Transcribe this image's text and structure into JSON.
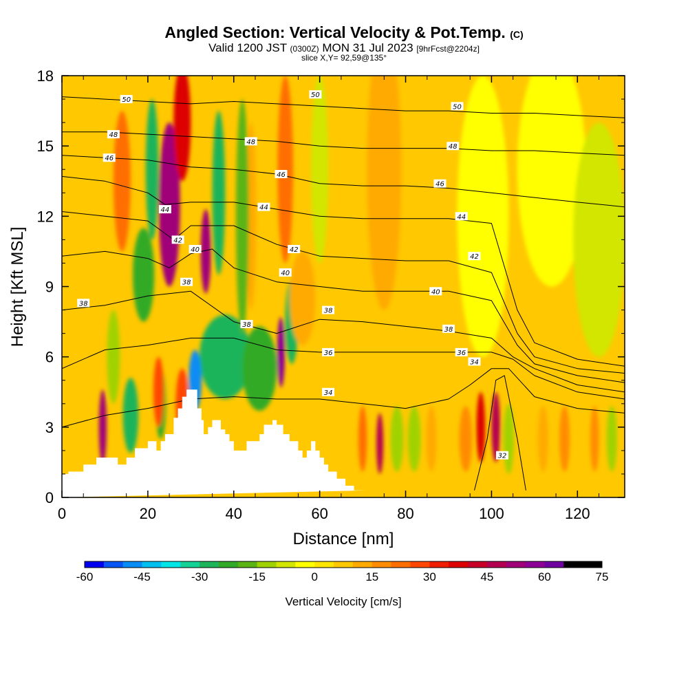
{
  "header": {
    "title": "Angled Section: Vertical Velocity & Pot.Temp.",
    "copyright": "(C)",
    "valid_prefix": "Valid 1200 JST",
    "valid_utc": "(0300Z)",
    "valid_date": "MON 31 Jul 2023",
    "forecast": "[9hrFcst@2204z]",
    "slice": "slice X,Y= 92,59@135°"
  },
  "colors": {
    "velocity_scale": [
      "#0000f0",
      "#0a55f5",
      "#0a8cf5",
      "#00c0f0",
      "#00e6e6",
      "#14d296",
      "#1eb45a",
      "#32aa28",
      "#5ab414",
      "#a0d200",
      "#d2e600",
      "#ffff00",
      "#ffe600",
      "#ffc800",
      "#ffaa00",
      "#ff8c00",
      "#ff6e00",
      "#ff4600",
      "#f01e00",
      "#dc0000",
      "#c80028",
      "#b40050",
      "#a00078",
      "#8c0096",
      "#6e00a0"
    ],
    "contour_line": "#000000",
    "terrain": "#ffffff"
  },
  "chart_data": {
    "type": "heatmap",
    "title": "Angled Section: Vertical Velocity & Pot.Temp.",
    "xlabel": "Distance [nm]",
    "ylabel": "Height [Kft MSL]",
    "xlim": [
      0,
      131
    ],
    "ylim": [
      0,
      18
    ],
    "x_ticks": [
      "0",
      "20",
      "40",
      "60",
      "80",
      "100",
      "120"
    ],
    "y_ticks": [
      "0",
      "3",
      "6",
      "9",
      "12",
      "15",
      "18"
    ],
    "x_tick_values": [
      0,
      20,
      40,
      60,
      80,
      100,
      120
    ],
    "y_tick_values": [
      0,
      3,
      6,
      9,
      12,
      15,
      18
    ],
    "colorbar": {
      "label": "Vertical Velocity [cm/s]",
      "min": -60,
      "max": 75,
      "step": 5,
      "tick_labels": [
        "-60",
        "-45",
        "-30",
        "-15",
        "0",
        "15",
        "30",
        "45",
        "60",
        "75"
      ]
    },
    "background_velocity": 5,
    "velocity_features": [
      {
        "x": 25,
        "y": 12.5,
        "w": 2.5,
        "h": 3.5,
        "value": 50
      },
      {
        "x": 28,
        "y": 16,
        "w": 2,
        "h": 2.5,
        "value": 35
      },
      {
        "x": 21,
        "y": 14,
        "w": 1.5,
        "h": 3,
        "value": -28
      },
      {
        "x": 19,
        "y": 9.5,
        "w": 2.5,
        "h": 2,
        "value": -22
      },
      {
        "x": 14,
        "y": 13.5,
        "w": 2,
        "h": 3,
        "value": 22
      },
      {
        "x": 33.5,
        "y": 10.5,
        "w": 1.2,
        "h": 1.8,
        "value": 50
      },
      {
        "x": 36.5,
        "y": 13,
        "w": 1.5,
        "h": 3.5,
        "value": -28
      },
      {
        "x": 38,
        "y": 6,
        "w": 6,
        "h": 1.8,
        "value": -28
      },
      {
        "x": 31,
        "y": 5,
        "w": 1.5,
        "h": 1.3,
        "value": -50
      },
      {
        "x": 46,
        "y": 5.5,
        "w": 4,
        "h": 1.8,
        "value": -25
      },
      {
        "x": 44,
        "y": 12,
        "w": 1.2,
        "h": 4,
        "value": 12
      },
      {
        "x": 42,
        "y": 12,
        "w": 1.5,
        "h": 5,
        "value": -20
      },
      {
        "x": 51,
        "y": 6.2,
        "w": 0.9,
        "h": 1.5,
        "value": 55
      },
      {
        "x": 52,
        "y": 14,
        "w": 1.8,
        "h": 4,
        "value": 22
      },
      {
        "x": 53.5,
        "y": 7.5,
        "w": 1.5,
        "h": 1.8,
        "value": -30
      },
      {
        "x": 56,
        "y": 8.5,
        "w": 3,
        "h": 2,
        "value": 12
      },
      {
        "x": 9.5,
        "y": 3,
        "w": 0.9,
        "h": 1.6,
        "value": 52
      },
      {
        "x": 12,
        "y": 6,
        "w": 1.5,
        "h": 2,
        "value": -15
      },
      {
        "x": 16,
        "y": 3.5,
        "w": 1.8,
        "h": 1.6,
        "value": -28
      },
      {
        "x": 23,
        "y": 4,
        "w": 1.2,
        "h": 1.5,
        "value": -22
      },
      {
        "x": 22.5,
        "y": 4.5,
        "w": 1.2,
        "h": 1.5,
        "value": 28
      },
      {
        "x": 28,
        "y": 4,
        "w": 1.5,
        "h": 1.5,
        "value": 28
      },
      {
        "x": 74,
        "y": 2.3,
        "w": 0.8,
        "h": 1.3,
        "value": 48
      },
      {
        "x": 70,
        "y": 2.5,
        "w": 1,
        "h": 1.4,
        "value": 20
      },
      {
        "x": 78,
        "y": 2.5,
        "w": 1.5,
        "h": 1.4,
        "value": -15
      },
      {
        "x": 82,
        "y": 2.5,
        "w": 1.5,
        "h": 1.4,
        "value": -15
      },
      {
        "x": 86,
        "y": 2.5,
        "w": 1.2,
        "h": 1.4,
        "value": 12
      },
      {
        "x": 94,
        "y": 2.5,
        "w": 1.5,
        "h": 1.4,
        "value": 18
      },
      {
        "x": 97.5,
        "y": 3,
        "w": 1,
        "h": 1.5,
        "value": 38
      },
      {
        "x": 101,
        "y": 3,
        "w": 1,
        "h": 1.5,
        "value": 45
      },
      {
        "x": 104,
        "y": 2.5,
        "w": 1.2,
        "h": 1.5,
        "value": -15
      },
      {
        "x": 112,
        "y": 2.5,
        "w": 1.2,
        "h": 1.4,
        "value": 12
      },
      {
        "x": 117,
        "y": 2.5,
        "w": 1.2,
        "h": 1.4,
        "value": 15
      },
      {
        "x": 124,
        "y": 2.5,
        "w": 1,
        "h": 1.4,
        "value": 15
      },
      {
        "x": 128,
        "y": 2.5,
        "w": 1.2,
        "h": 1.4,
        "value": -15
      },
      {
        "x": 98,
        "y": 12,
        "w": 6,
        "h": 6,
        "value": -5
      },
      {
        "x": 114,
        "y": 14,
        "w": 8,
        "h": 5,
        "value": -5
      },
      {
        "x": 75,
        "y": 14,
        "w": 4,
        "h": 6,
        "value": 12
      },
      {
        "x": 60,
        "y": 14,
        "w": 2,
        "h": 4,
        "value": -8
      },
      {
        "x": 125,
        "y": 11,
        "w": 6,
        "h": 5,
        "value": -8
      }
    ],
    "isentropes": [
      {
        "level": 32,
        "label": "32",
        "x": [
          96,
          99,
          101,
          103,
          106,
          108
        ],
        "y": [
          0.3,
          2.5,
          5.0,
          5.2,
          2.5,
          0.3
        ],
        "labels_at": [
          [
            102.5,
            1.8
          ]
        ]
      },
      {
        "level": 34,
        "label": "34",
        "x": [
          0,
          10,
          20,
          30,
          40,
          50,
          60,
          70,
          80,
          90,
          95,
          100,
          104,
          110,
          120,
          131
        ],
        "y": [
          3.0,
          3.5,
          3.8,
          4.2,
          4.3,
          4.2,
          4.2,
          4.0,
          3.8,
          4.2,
          4.8,
          5.5,
          5.5,
          4.3,
          3.8,
          3.6
        ],
        "labels_at": [
          [
            62,
            4.5
          ],
          [
            96,
            5.8
          ]
        ]
      },
      {
        "level": 36,
        "label": "36",
        "x": [
          0,
          10,
          20,
          30,
          40,
          50,
          60,
          70,
          80,
          90,
          100,
          105,
          110,
          120,
          131
        ],
        "y": [
          5.5,
          6.3,
          6.5,
          6.8,
          6.8,
          6.3,
          6.2,
          6.2,
          6.2,
          6.2,
          6.2,
          5.9,
          5.2,
          4.5,
          4.2
        ],
        "labels_at": [
          [
            62,
            6.2
          ],
          [
            93,
            6.2
          ]
        ]
      },
      {
        "level": 38,
        "label": "38",
        "x": [
          0,
          10,
          20,
          30,
          40,
          50,
          60,
          70,
          80,
          90,
          100,
          105,
          110,
          120,
          131
        ],
        "y": [
          8.0,
          8.2,
          8.6,
          8.8,
          7.5,
          7.0,
          7.6,
          7.5,
          7.3,
          7.1,
          6.8,
          6.0,
          5.5,
          4.8,
          4.5
        ],
        "labels_at": [
          [
            5,
            8.3
          ],
          [
            29,
            9.2
          ],
          [
            43,
            7.4
          ],
          [
            62,
            8.0
          ],
          [
            90,
            7.2
          ]
        ]
      },
      {
        "level": 40,
        "label": "40",
        "x": [
          0,
          10,
          20,
          25,
          30,
          35,
          40,
          50,
          60,
          70,
          80,
          90,
          100,
          106,
          110,
          120,
          131
        ],
        "y": [
          10.3,
          10.5,
          10.2,
          9.8,
          10.4,
          10.6,
          9.8,
          9.2,
          9.0,
          8.8,
          8.8,
          8.8,
          8.4,
          6.5,
          5.7,
          5.2,
          4.9
        ],
        "labels_at": [
          [
            31,
            10.6
          ],
          [
            52,
            9.6
          ],
          [
            87,
            8.8
          ]
        ]
      },
      {
        "level": 42,
        "label": "42",
        "x": [
          0,
          10,
          20,
          26,
          30,
          40,
          50,
          60,
          70,
          80,
          90,
          100,
          106,
          110,
          120,
          131
        ],
        "y": [
          12.2,
          12.0,
          11.8,
          11.0,
          11.6,
          11.6,
          10.8,
          10.3,
          10.2,
          10.1,
          10.1,
          9.6,
          7.0,
          6.0,
          5.5,
          5.3
        ],
        "labels_at": [
          [
            27,
            11.0
          ],
          [
            54,
            10.6
          ],
          [
            96,
            10.3
          ]
        ]
      },
      {
        "level": 44,
        "label": "44",
        "x": [
          0,
          10,
          20,
          24,
          30,
          40,
          50,
          60,
          70,
          80,
          90,
          100,
          106,
          110,
          120,
          131
        ],
        "y": [
          13.7,
          13.5,
          13.0,
          12.5,
          12.6,
          12.6,
          12.3,
          12.0,
          11.9,
          11.9,
          11.9,
          11.7,
          8.0,
          6.6,
          5.9,
          5.6
        ],
        "labels_at": [
          [
            24,
            12.3
          ],
          [
            47,
            12.4
          ],
          [
            93,
            12.0
          ]
        ]
      },
      {
        "level": 46,
        "label": "46",
        "x": [
          0,
          10,
          20,
          30,
          40,
          50,
          60,
          70,
          80,
          90,
          100,
          110,
          120,
          131
        ],
        "y": [
          14.6,
          14.5,
          14.4,
          14.1,
          14.0,
          13.8,
          13.4,
          13.3,
          13.3,
          13.2,
          13.0,
          12.8,
          12.6,
          12.4
        ],
        "labels_at": [
          [
            11,
            14.5
          ],
          [
            51,
            13.8
          ],
          [
            88,
            13.4
          ]
        ]
      },
      {
        "level": 48,
        "label": "48",
        "x": [
          0,
          10,
          20,
          30,
          40,
          50,
          60,
          70,
          80,
          90,
          100,
          110,
          120,
          131
        ],
        "y": [
          15.6,
          15.6,
          15.5,
          15.4,
          15.3,
          15.2,
          15.0,
          14.9,
          14.9,
          14.9,
          14.8,
          14.8,
          14.7,
          14.6
        ],
        "labels_at": [
          [
            12,
            15.5
          ],
          [
            44,
            15.2
          ],
          [
            91,
            15.0
          ]
        ]
      },
      {
        "level": 50,
        "label": "50",
        "x": [
          0,
          10,
          20,
          30,
          40,
          50,
          60,
          70,
          80,
          90,
          100,
          110,
          120,
          131
        ],
        "y": [
          17.1,
          17.0,
          16.9,
          16.8,
          16.9,
          16.8,
          16.7,
          16.6,
          16.5,
          16.5,
          16.4,
          16.4,
          16.3,
          16.2
        ],
        "labels_at": [
          [
            15,
            17.0
          ],
          [
            59,
            17.2
          ],
          [
            92,
            16.7
          ]
        ]
      }
    ],
    "terrain_profile": {
      "x": [
        0,
        1.5,
        1.5,
        5,
        5,
        8,
        8,
        13,
        13,
        15,
        15,
        17,
        17,
        20,
        20,
        22,
        22,
        23,
        23,
        24,
        24,
        26,
        26,
        27,
        27,
        28,
        28,
        29,
        29,
        31.5,
        31.5,
        32.5,
        32.5,
        33,
        33,
        34,
        34,
        35,
        35,
        37,
        37,
        38,
        38,
        39,
        39,
        40,
        40,
        43,
        43,
        46,
        46,
        47,
        47,
        49,
        49,
        50,
        50,
        51.5,
        51.5,
        53,
        53,
        55,
        55,
        56,
        56,
        57,
        57,
        58,
        58,
        59,
        59,
        60,
        60,
        61,
        61,
        62,
        62,
        64,
        64,
        66,
        66,
        68,
        68,
        71,
        71,
        131
      ],
      "y": [
        1.0,
        1.0,
        1.1,
        1.1,
        1.4,
        1.4,
        1.7,
        1.7,
        1.4,
        1.4,
        1.7,
        1.7,
        2.1,
        2.1,
        2.4,
        2.4,
        2.0,
        2.0,
        2.4,
        2.4,
        2.7,
        2.7,
        3.4,
        3.4,
        3.8,
        3.8,
        4.3,
        4.3,
        4.6,
        4.6,
        3.8,
        3.8,
        3.3,
        3.3,
        2.7,
        2.7,
        3.0,
        3.0,
        3.3,
        3.3,
        2.9,
        2.9,
        2.7,
        2.7,
        2.4,
        2.4,
        2.0,
        2.0,
        2.4,
        2.4,
        2.7,
        2.7,
        3.1,
        3.1,
        3.3,
        3.3,
        3.1,
        3.1,
        2.7,
        2.7,
        2.4,
        2.4,
        2.0,
        2.0,
        1.7,
        1.7,
        2.0,
        2.0,
        2.4,
        2.4,
        2.0,
        2.0,
        1.7,
        1.7,
        1.4,
        1.4,
        1.1,
        1.1,
        0.8,
        0.8,
        0.5,
        0.5,
        0.3,
        0.3,
        0.3
      ]
    }
  }
}
